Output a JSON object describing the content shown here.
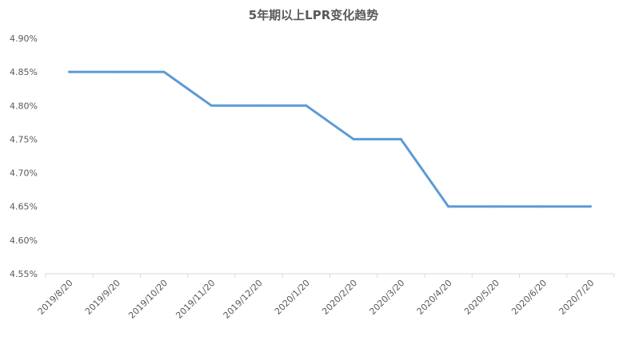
{
  "chart_data": {
    "type": "line",
    "title": "5年期以上LPR变化趋势",
    "xlabel": "",
    "ylabel": "",
    "categories": [
      "2019/8/20",
      "2019/9/20",
      "2019/10/20",
      "2019/11/20",
      "2019/12/20",
      "2020/1/20",
      "2020/2/20",
      "2020/3/20",
      "2020/4/20",
      "2020/5/20",
      "2020/6/20",
      "2020/7/20"
    ],
    "series": [
      {
        "values": [
          4.85,
          4.85,
          4.85,
          4.8,
          4.8,
          4.8,
          4.75,
          4.75,
          4.65,
          4.65,
          4.65,
          4.65
        ]
      }
    ],
    "ylim": [
      4.55,
      4.9
    ],
    "yticks": [
      "4.55%",
      "4.60%",
      "4.65%",
      "4.70%",
      "4.75%",
      "4.80%",
      "4.85%",
      "4.90%"
    ],
    "grid": false,
    "legend": "none",
    "line_color": "#5B9BD5",
    "axis_color": "#D9D9D9"
  }
}
